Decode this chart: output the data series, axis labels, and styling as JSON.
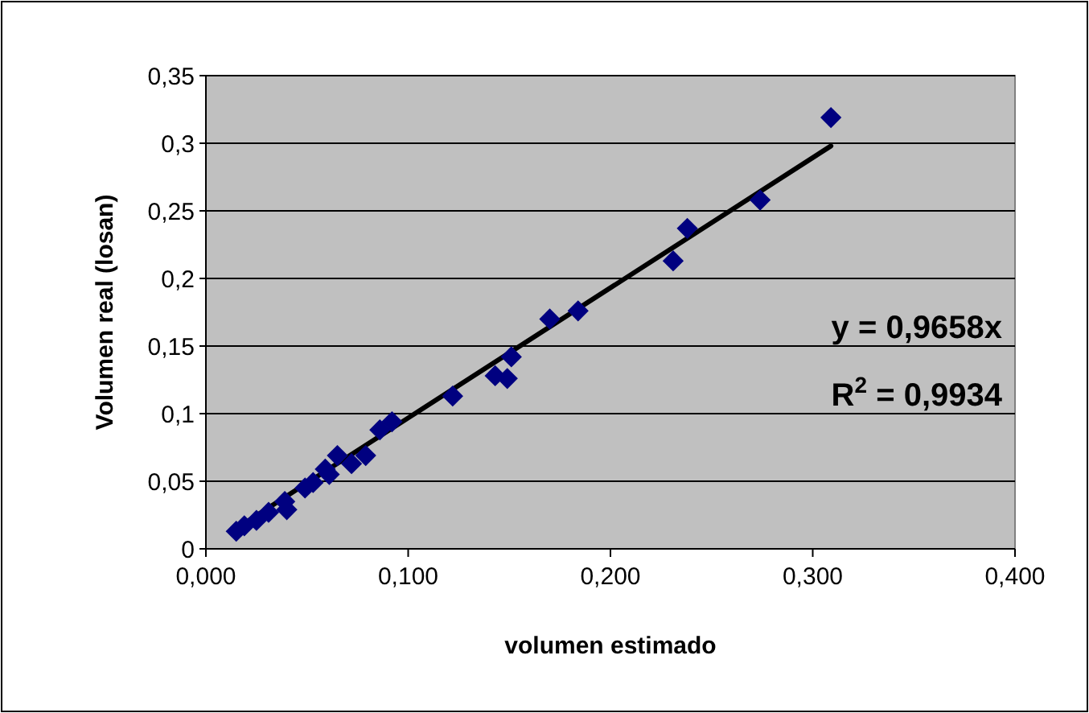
{
  "chart_data": {
    "type": "scatter",
    "xlabel": "volumen estimado",
    "ylabel": "Volumen real (losan)",
    "xlim": [
      0,
      0.4
    ],
    "ylim": [
      0,
      0.35
    ],
    "xticks": [
      {
        "value": 0,
        "label": "0,000"
      },
      {
        "value": 0.1,
        "label": "0,100"
      },
      {
        "value": 0.2,
        "label": "0,200"
      },
      {
        "value": 0.3,
        "label": "0,300"
      },
      {
        "value": 0.4,
        "label": "0,400"
      }
    ],
    "yticks": [
      0,
      {
        "value": 0.05,
        "label": "0,05"
      },
      {
        "value": 0.1,
        "label": "0,1"
      },
      {
        "value": 0.15,
        "label": "0,15"
      },
      {
        "value": 0.2,
        "label": "0,2"
      },
      {
        "value": 0.25,
        "label": "0,25"
      },
      {
        "value": 0.3,
        "label": "0,3"
      },
      {
        "value": 0.35,
        "label": "0,35"
      }
    ],
    "grid": "y",
    "series": [
      {
        "color": "#000080",
        "marker": "diamond",
        "x": [
          0.015,
          0.019,
          0.025,
          0.031,
          0.039,
          0.04,
          0.049,
          0.053,
          0.059,
          0.061,
          0.065,
          0.072,
          0.079,
          0.086,
          0.092,
          0.122,
          0.143,
          0.149,
          0.151,
          0.17,
          0.184,
          0.231,
          0.238,
          0.274,
          0.309
        ],
        "values": [
          0.013,
          0.017,
          0.021,
          0.027,
          0.035,
          0.029,
          0.045,
          0.049,
          0.059,
          0.055,
          0.069,
          0.063,
          0.069,
          0.088,
          0.094,
          0.113,
          0.128,
          0.126,
          0.142,
          0.17,
          0.176,
          0.213,
          0.237,
          0.258,
          0.319
        ]
      },
      {
        "type": "line",
        "color": "#000000",
        "marker": "none",
        "line_style": "solid",
        "x": [
          0.015,
          0.309
        ],
        "values": [
          0.015,
          0.298
        ]
      }
    ],
    "annotations": [
      "y = 0,9658x",
      "R$^{2}$ = 0,9934"
    ]
  }
}
